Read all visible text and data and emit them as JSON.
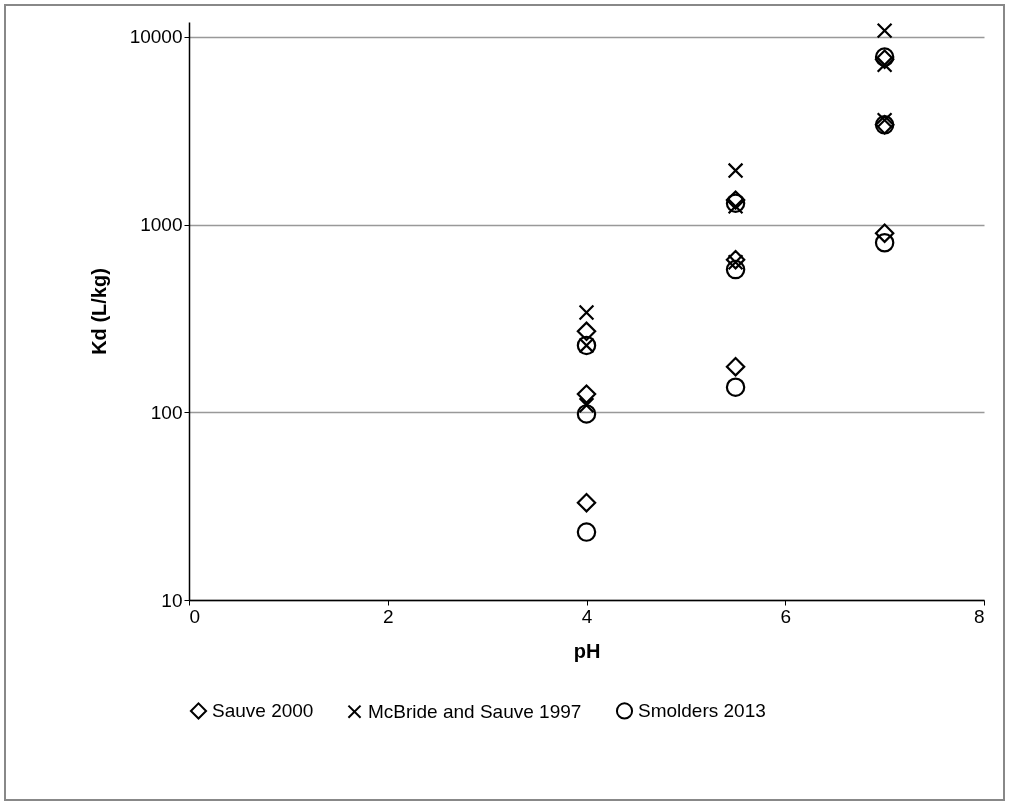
{
  "chart_data": {
    "type": "scatter",
    "xlabel": "pH",
    "ylabel": "Kd (L/kg)",
    "xlim": [
      0,
      8
    ],
    "xticks": [
      0,
      2,
      4,
      6,
      8
    ],
    "ylim": [
      10,
      12000
    ],
    "yticks": [
      10,
      100,
      1000,
      10000
    ],
    "log": "y",
    "grid": "y",
    "legend": "bottom",
    "series": [
      {
        "name": "Sauve 2000",
        "color": "#000000",
        "marker": "diamond",
        "x": [
          4,
          4,
          4,
          5.5,
          5.5,
          5.5,
          7,
          7,
          7
        ],
        "values": [
          270,
          125,
          33,
          1350,
          650,
          175,
          7600,
          3400,
          900
        ]
      },
      {
        "name": "McBride and Sauve 1997",
        "color": "#000000",
        "marker": "cross",
        "x": [
          4,
          4,
          4,
          5.5,
          5.5,
          5.5,
          7,
          7,
          7
        ],
        "values": [
          340,
          227,
          109,
          1940,
          1250,
          630,
          10800,
          7100,
          3600
        ]
      },
      {
        "name": "Smolders 2013",
        "color": "#000000",
        "marker": "circle",
        "x": [
          4,
          4,
          4,
          5.5,
          5.5,
          5.5,
          7,
          7,
          7
        ],
        "values": [
          227,
          98,
          23,
          1300,
          576,
          136,
          7800,
          3400,
          800
        ]
      }
    ]
  }
}
